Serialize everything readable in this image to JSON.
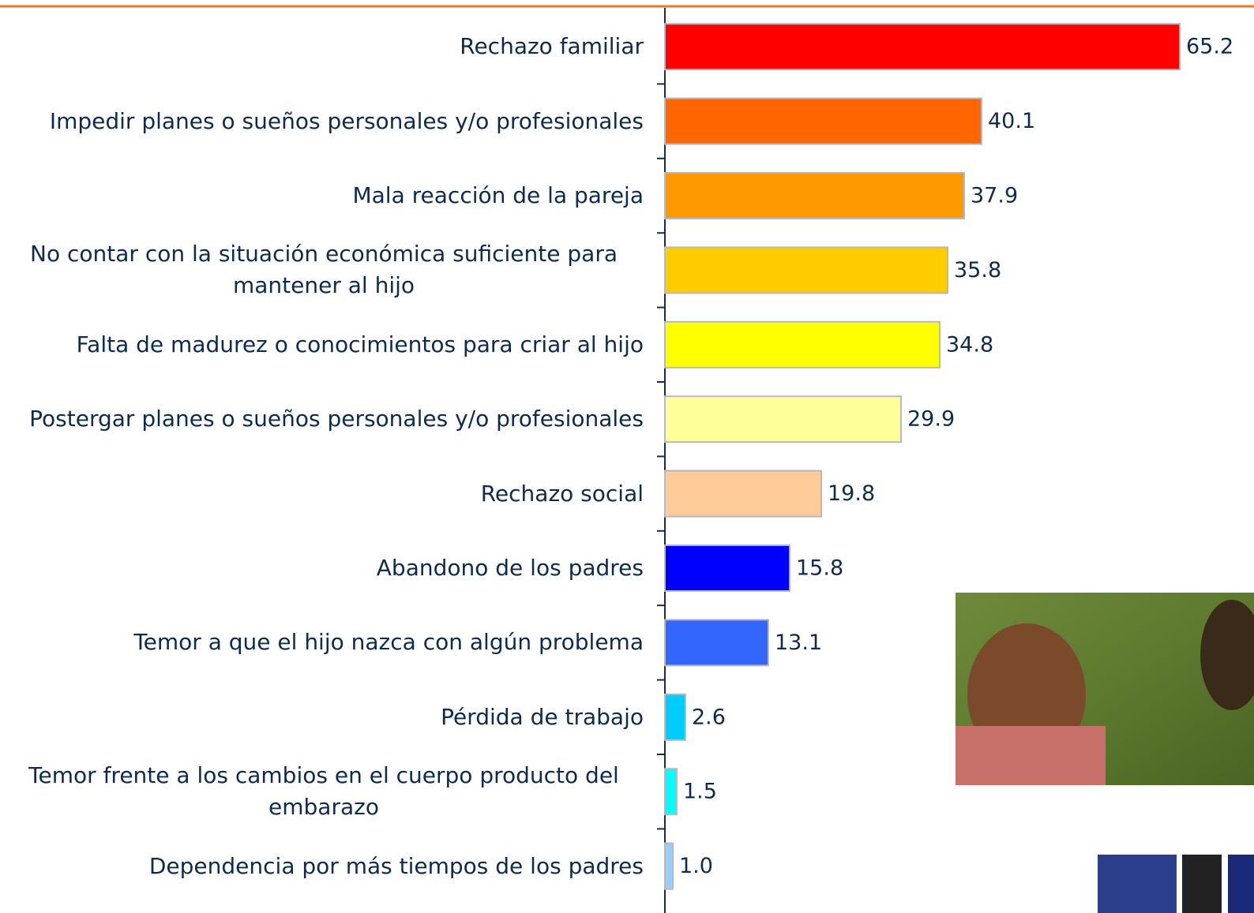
{
  "chart_data": {
    "type": "hbar",
    "categories": [
      "Rechazo familiar",
      "Impedir planes o sueños personales y/o profesionales",
      "Mala reacción de la pareja",
      "No contar con la situación económica suficiente para mantener al hijo",
      "Falta de madurez o conocimientos para criar al hijo",
      "Postergar planes o sueños personales y/o profesionales",
      "Rechazo social",
      "Abandono de los padres",
      "Temor a que el hijo nazca con algún problema",
      "Pérdida de trabajo",
      "Temor frente a los cambios en el cuerpo producto del embarazo",
      "Dependencia por más tiempos de los padres"
    ],
    "values": [
      65.2,
      40.1,
      37.9,
      35.8,
      34.8,
      29.9,
      19.8,
      15.8,
      13.1,
      2.6,
      1.5,
      1.0
    ],
    "value_labels": [
      "65.2",
      "40.1",
      "37.9",
      "35.8",
      "34.8",
      "29.9",
      "19.8",
      "15.8",
      "13.1",
      "2.6",
      "1.5",
      "1.0"
    ],
    "colors": [
      "#ff0000",
      "#ff6600",
      "#ff9900",
      "#ffcc00",
      "#ffff00",
      "#ffff99",
      "#ffcc99",
      "#0000ff",
      "#3366ff",
      "#00ccff",
      "#00ffff",
      "#99ccff"
    ],
    "xlim": [
      0,
      70
    ]
  }
}
